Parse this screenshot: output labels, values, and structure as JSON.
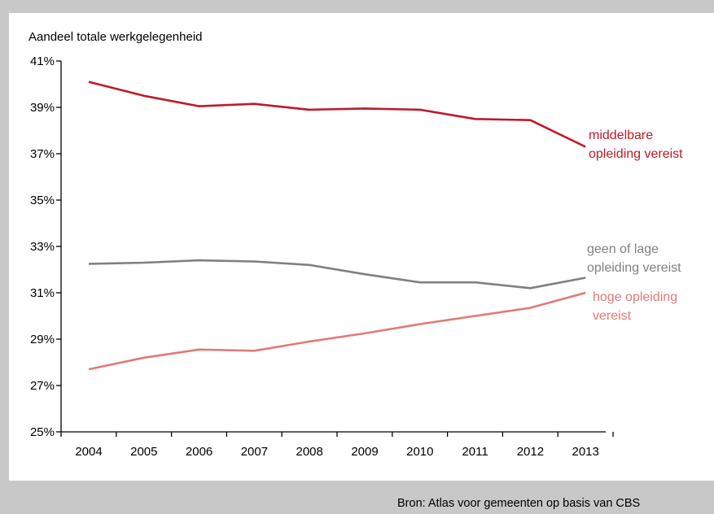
{
  "chart_data": {
    "type": "line",
    "y_axis_title": "Aandeel totale werkgelegenheid",
    "x": [
      "2004",
      "2005",
      "2006",
      "2007",
      "2008",
      "2009",
      "2010",
      "2011",
      "2012",
      "2013"
    ],
    "y_ticks": [
      "25%",
      "27%",
      "29%",
      "31%",
      "33%",
      "35%",
      "37%",
      "39%",
      "41%"
    ],
    "ylim": [
      25,
      41
    ],
    "grid": false,
    "series": [
      {
        "key": "middelbaar",
        "label_lines": [
          "middelbare",
          "opleiding vereist"
        ],
        "color": "#c0182a",
        "values": [
          40.1,
          39.5,
          39.05,
          39.15,
          38.9,
          38.95,
          38.9,
          38.5,
          38.45,
          37.3
        ]
      },
      {
        "key": "laag",
        "label_lines": [
          "geen of lage",
          "opleiding vereist"
        ],
        "color": "#808080",
        "values": [
          32.25,
          32.3,
          32.4,
          32.35,
          32.2,
          31.8,
          31.45,
          31.45,
          31.2,
          31.65
        ]
      },
      {
        "key": "hoog",
        "label_lines": [
          "hoge opleiding",
          "vereist"
        ],
        "color": "#e07a75",
        "values": [
          27.7,
          28.2,
          28.55,
          28.5,
          28.9,
          29.25,
          29.65,
          30.0,
          30.35,
          31.0
        ]
      }
    ]
  },
  "footer": {
    "source": "Bron: Atlas voor gemeenten op basis van CBS"
  }
}
